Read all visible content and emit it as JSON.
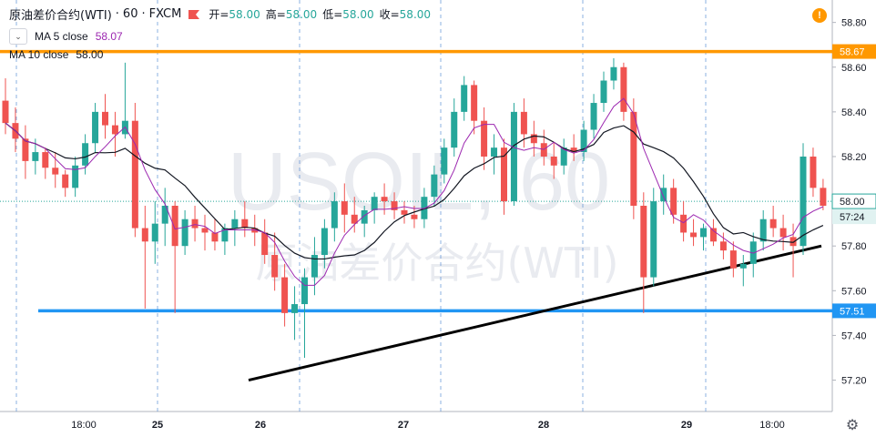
{
  "header": {
    "symbol": "原油差价合约(WTI)",
    "interval": "60",
    "exchange": "FXCM",
    "open_label": "开=",
    "open_value": "58.00",
    "high_label": "高=",
    "high_value": "58.00",
    "low_label": "低=",
    "low_value": "58.00",
    "close_label": "收=",
    "close_value": "58.00"
  },
  "legend": {
    "ma5_label": "MA 5 close",
    "ma5_value": "58.07",
    "ma10_label": "MA 10 close",
    "ma10_value": "58.00"
  },
  "icons": {
    "collapse": "chevron-down-icon",
    "warning": "exclamation-icon",
    "settings": "gear-icon",
    "flag": "flag-icon"
  },
  "watermark": {
    "symbol": "USOIL, 60",
    "name": "原油差价合约(WTI)"
  },
  "colors": {
    "up": "#26a69a",
    "down": "#ef5350",
    "ma5": "#9c27b0",
    "ma10": "#131722",
    "resistance": "#ff9800",
    "support": "#2196f3",
    "trendline": "#000000",
    "price": "#26a69a"
  },
  "chart_data": {
    "type": "candlestick",
    "y_axis_ticks": [
      "58.80",
      "58.60",
      "58.40",
      "58.20",
      "58.00",
      "57.80",
      "57.60",
      "57.40",
      "57.20"
    ],
    "x_axis_ticks": [
      "18:00",
      "25",
      "26",
      "27",
      "28",
      "29",
      "18:00"
    ],
    "ylim": [
      57.08,
      58.88
    ],
    "horizontal_lines": [
      {
        "name": "resistance",
        "value": 58.67,
        "label": "58.67"
      },
      {
        "name": "support",
        "value": 57.51,
        "label": "57.51"
      }
    ],
    "current_price": {
      "value": 58.0,
      "label": "58.00",
      "countdown": "57:24"
    },
    "trendline": {
      "from": {
        "bar": 0,
        "x_label": "26",
        "value": 57.2
      },
      "to": {
        "bar": 1,
        "x_label": "29 18:00",
        "value": 57.8
      }
    },
    "series": [
      {
        "name": "MA 5 close"
      },
      {
        "name": "MA 10 close"
      }
    ],
    "candles": [
      [
        58.45,
        58.55,
        58.3,
        58.35
      ],
      [
        58.35,
        58.42,
        58.22,
        58.28
      ],
      [
        58.28,
        58.34,
        58.1,
        58.18
      ],
      [
        58.18,
        58.28,
        58.12,
        58.22
      ],
      [
        58.22,
        58.24,
        58.1,
        58.15
      ],
      [
        58.15,
        58.22,
        58.06,
        58.12
      ],
      [
        58.12,
        58.14,
        58.02,
        58.06
      ],
      [
        58.06,
        58.2,
        58.02,
        58.16
      ],
      [
        58.16,
        58.3,
        58.12,
        58.26
      ],
      [
        58.26,
        58.44,
        58.22,
        58.4
      ],
      [
        58.4,
        58.48,
        58.28,
        58.34
      ],
      [
        58.34,
        58.4,
        58.2,
        58.3
      ],
      [
        58.3,
        58.62,
        58.28,
        58.36
      ],
      [
        58.36,
        58.44,
        57.84,
        57.88
      ],
      [
        57.88,
        57.98,
        57.52,
        57.82
      ],
      [
        57.82,
        58.0,
        57.72,
        57.9
      ],
      [
        57.9,
        58.06,
        57.8,
        57.98
      ],
      [
        57.98,
        58.0,
        57.5,
        57.8
      ],
      [
        57.8,
        57.96,
        57.76,
        57.92
      ],
      [
        57.92,
        57.98,
        57.82,
        57.88
      ],
      [
        57.88,
        57.94,
        57.78,
        57.86
      ],
      [
        57.86,
        57.92,
        57.78,
        57.82
      ],
      [
        57.82,
        57.9,
        57.76,
        57.88
      ],
      [
        57.88,
        57.96,
        57.8,
        57.92
      ],
      [
        57.92,
        58.0,
        57.84,
        57.88
      ],
      [
        57.88,
        57.94,
        57.8,
        57.86
      ],
      [
        57.86,
        57.92,
        57.72,
        57.76
      ],
      [
        57.76,
        57.86,
        57.6,
        57.66
      ],
      [
        57.66,
        57.72,
        57.44,
        57.5
      ],
      [
        57.5,
        57.62,
        57.38,
        57.54
      ],
      [
        57.54,
        57.7,
        57.3,
        57.66
      ],
      [
        57.66,
        57.84,
        57.58,
        57.76
      ],
      [
        57.76,
        57.92,
        57.7,
        57.88
      ],
      [
        57.88,
        58.04,
        57.82,
        58.0
      ],
      [
        58.0,
        58.08,
        57.86,
        57.94
      ],
      [
        57.94,
        58.02,
        57.86,
        57.9
      ],
      [
        57.9,
        57.98,
        57.84,
        57.96
      ],
      [
        57.96,
        58.04,
        57.9,
        58.02
      ],
      [
        58.02,
        58.08,
        57.94,
        58.0
      ],
      [
        58.0,
        58.04,
        57.92,
        57.96
      ],
      [
        57.96,
        58.0,
        57.9,
        57.94
      ],
      [
        57.94,
        57.98,
        57.88,
        57.92
      ],
      [
        57.92,
        58.06,
        57.88,
        58.02
      ],
      [
        58.02,
        58.16,
        57.98,
        58.12
      ],
      [
        58.12,
        58.28,
        58.08,
        58.24
      ],
      [
        58.24,
        58.46,
        58.2,
        58.4
      ],
      [
        58.4,
        58.56,
        58.36,
        58.52
      ],
      [
        58.52,
        58.54,
        58.3,
        58.36
      ],
      [
        58.36,
        58.42,
        58.14,
        58.2
      ],
      [
        58.2,
        58.3,
        58.12,
        58.24
      ],
      [
        58.24,
        58.28,
        57.94,
        58.0
      ],
      [
        58.0,
        58.44,
        57.98,
        58.4
      ],
      [
        58.4,
        58.46,
        58.24,
        58.3
      ],
      [
        58.3,
        58.36,
        58.2,
        58.26
      ],
      [
        58.26,
        58.32,
        58.16,
        58.2
      ],
      [
        58.2,
        58.26,
        58.1,
        58.16
      ],
      [
        58.16,
        58.28,
        58.12,
        58.24
      ],
      [
        58.24,
        58.3,
        58.18,
        58.22
      ],
      [
        58.22,
        58.36,
        58.18,
        58.32
      ],
      [
        58.32,
        58.48,
        58.28,
        58.44
      ],
      [
        58.44,
        58.58,
        58.4,
        58.54
      ],
      [
        58.54,
        58.64,
        58.5,
        58.6
      ],
      [
        58.6,
        58.62,
        58.36,
        58.4
      ],
      [
        58.4,
        58.46,
        57.92,
        57.98
      ],
      [
        57.98,
        58.04,
        57.5,
        57.66
      ],
      [
        57.66,
        58.06,
        57.62,
        58.0
      ],
      [
        58.0,
        58.12,
        57.94,
        58.06
      ],
      [
        58.06,
        58.1,
        57.9,
        57.94
      ],
      [
        57.94,
        58.0,
        57.82,
        57.86
      ],
      [
        57.86,
        57.92,
        57.8,
        57.84
      ],
      [
        57.84,
        57.9,
        57.78,
        57.88
      ],
      [
        57.88,
        57.92,
        57.8,
        57.82
      ],
      [
        57.82,
        57.86,
        57.74,
        57.78
      ],
      [
        57.78,
        57.82,
        57.66,
        57.7
      ],
      [
        57.7,
        57.76,
        57.62,
        57.72
      ],
      [
        57.72,
        57.86,
        57.66,
        57.82
      ],
      [
        57.82,
        57.96,
        57.78,
        57.92
      ],
      [
        57.92,
        57.98,
        57.84,
        57.88
      ],
      [
        57.88,
        57.94,
        57.78,
        57.84
      ],
      [
        57.84,
        57.9,
        57.66,
        57.8
      ],
      [
        57.8,
        58.26,
        57.76,
        58.2
      ],
      [
        58.2,
        58.24,
        58.02,
        58.06
      ],
      [
        58.06,
        58.1,
        57.96,
        57.98
      ]
    ]
  }
}
